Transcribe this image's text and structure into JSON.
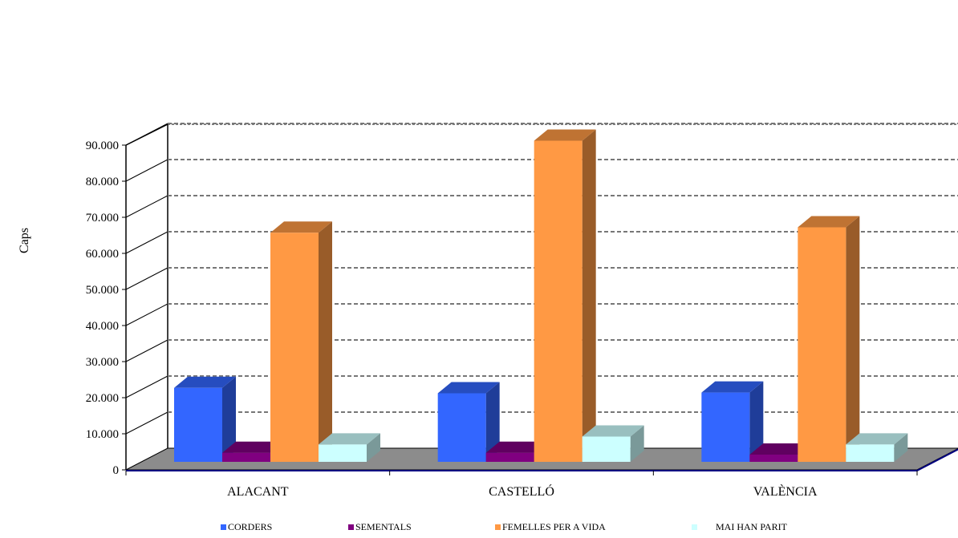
{
  "chart_data": {
    "type": "bar",
    "ylabel": "Caps",
    "xlabel": "",
    "ylim": [
      0,
      90000
    ],
    "ytick_labels": [
      "0",
      "10.000",
      "20.000",
      "30.000",
      "40.000",
      "50.000",
      "60.000",
      "70.000",
      "80.000",
      "90.000"
    ],
    "categories": [
      "ALACANT",
      "CASTELLÓ",
      "VALÈNCIA"
    ],
    "grid": true,
    "legend_position": "bottom",
    "series": [
      {
        "name": "CORDERS",
        "values": [
          20500,
          19000,
          19200
        ],
        "color": "#3366ff"
      },
      {
        "name": "SEMENTALS",
        "values": [
          2500,
          2500,
          2000
        ],
        "color": "#800080"
      },
      {
        "name": "FEMELLES PER A VIDA",
        "values": [
          63500,
          89000,
          65000
        ],
        "color": "#ff9944"
      },
      {
        "name": "MAI HAN PARIT",
        "values": [
          4800,
          7000,
          4800
        ],
        "color": "#ccffff"
      }
    ]
  }
}
